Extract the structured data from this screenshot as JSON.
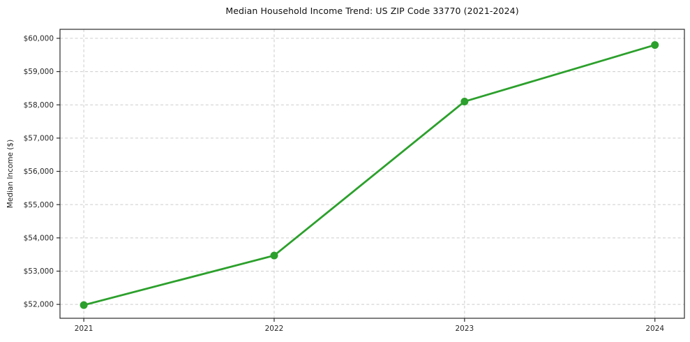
{
  "chart_data": {
    "type": "line",
    "title": "Median Household Income Trend: US ZIP Code 33770 (2021-2024)",
    "xlabel": "",
    "ylabel": "Median Income ($)",
    "x": [
      2021,
      2022,
      2023,
      2024
    ],
    "series": [
      {
        "name": "Median Household Income",
        "values": [
          51980,
          53470,
          58100,
          59800
        ]
      }
    ],
    "xlim": [
      2020.875,
      2024.155
    ],
    "ylim": [
      51583,
      60271
    ],
    "xticks": [
      2021,
      2022,
      2023,
      2024
    ],
    "xtick_labels": [
      "2021",
      "2022",
      "2023",
      "2024"
    ],
    "yticks": [
      52000,
      53000,
      54000,
      55000,
      56000,
      57000,
      58000,
      59000,
      60000
    ],
    "ytick_labels": [
      "$52,000",
      "$53,000",
      "$54,000",
      "$55,000",
      "$56,000",
      "$57,000",
      "$58,000",
      "$59,000",
      "$60,000"
    ],
    "grid": true,
    "grid_style": "dashed",
    "legend_position": "none",
    "line_color": "#2ca02c",
    "marker": "circle",
    "grid_color": "#cccccc",
    "spine_color": "#2b2b2b",
    "background_color": "#ffffff"
  }
}
